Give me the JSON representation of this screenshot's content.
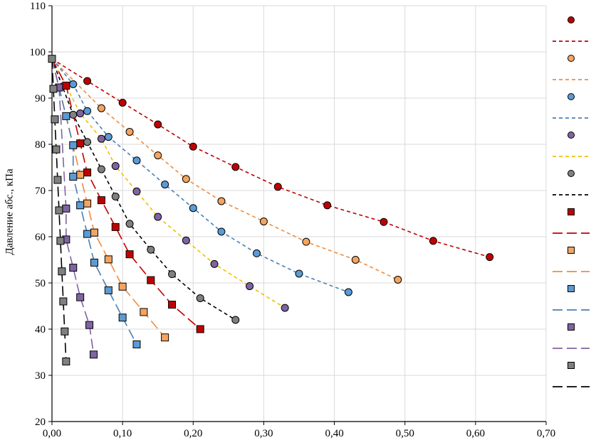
{
  "chart_data": {
    "type": "scatter",
    "title": "",
    "xlabel": "",
    "ylabel": "Давление абс., кПа",
    "xlim": [
      0,
      0.7
    ],
    "ylim": [
      20,
      110
    ],
    "x_ticks": [
      "0,00",
      "0,10",
      "0,20",
      "0,30",
      "0,40",
      "0,50",
      "0,60",
      "0,70"
    ],
    "y_ticks": [
      "20",
      "30",
      "40",
      "50",
      "60",
      "70",
      "80",
      "90",
      "100",
      "110"
    ],
    "grid": true,
    "legend_position": "right",
    "series": [
      {
        "marker": "circle",
        "color": "#c00000",
        "fit_style": "short-dash",
        "fit_color": "#c00000",
        "x": [
          0.05,
          0.1,
          0.15,
          0.2,
          0.26,
          0.32,
          0.39,
          0.47,
          0.54,
          0.62
        ],
        "y": [
          93.7,
          89.0,
          84.3,
          79.5,
          75.1,
          70.8,
          66.8,
          63.2,
          59.1,
          55.6
        ]
      },
      {
        "marker": "circle",
        "color": "#f4a460",
        "fit_style": "short-dash",
        "fit_color": "#f08c3c",
        "x": [
          0.07,
          0.11,
          0.15,
          0.19,
          0.24,
          0.3,
          0.36,
          0.43,
          0.49
        ],
        "y": [
          87.8,
          82.7,
          77.6,
          72.5,
          67.7,
          63.3,
          58.9,
          55.0,
          50.7
        ]
      },
      {
        "marker": "circle",
        "color": "#5b9bd5",
        "fit_style": "short-dash",
        "fit_color": "#4a7fb5",
        "x": [
          0.03,
          0.05,
          0.08,
          0.12,
          0.16,
          0.2,
          0.24,
          0.29,
          0.35,
          0.42
        ],
        "y": [
          93.0,
          87.2,
          81.6,
          76.5,
          71.3,
          66.2,
          61.1,
          56.4,
          52.0,
          48.0
        ]
      },
      {
        "marker": "circle",
        "color": "#8064a2",
        "fit_style": "short-dash",
        "fit_color": "#f0c000",
        "x": [
          0.04,
          0.07,
          0.09,
          0.12,
          0.15,
          0.19,
          0.23,
          0.28,
          0.33
        ],
        "y": [
          86.7,
          81.2,
          75.3,
          69.8,
          64.3,
          59.2,
          54.1,
          49.3,
          44.6
        ]
      },
      {
        "marker": "circle",
        "color": "#808080",
        "fit_style": "short-dash",
        "fit_color": "#000000",
        "x": [
          0.03,
          0.05,
          0.07,
          0.09,
          0.11,
          0.14,
          0.17,
          0.21,
          0.26
        ],
        "y": [
          86.4,
          80.5,
          74.6,
          68.7,
          62.8,
          57.2,
          51.9,
          46.7,
          42.0
        ]
      },
      {
        "marker": "square",
        "color": "#c00000",
        "fit_style": "long-dash",
        "fit_color": "#c00000",
        "x": [
          0.02,
          0.04,
          0.05,
          0.07,
          0.09,
          0.11,
          0.14,
          0.17,
          0.21
        ],
        "y": [
          92.7,
          80.2,
          73.9,
          67.9,
          62.1,
          56.2,
          50.6,
          45.3,
          40.0
        ]
      },
      {
        "marker": "square",
        "color": "#f4a460",
        "fit_style": "long-dash",
        "fit_color": "#f08c3c",
        "x": [
          0.04,
          0.05,
          0.06,
          0.08,
          0.1,
          0.13,
          0.16
        ],
        "y": [
          73.4,
          67.2,
          60.9,
          55.1,
          49.2,
          43.7,
          38.2
        ]
      },
      {
        "marker": "square",
        "color": "#5b9bd5",
        "fit_style": "long-dash",
        "fit_color": "#4a7fb5",
        "x": [
          0.02,
          0.03,
          0.03,
          0.04,
          0.05,
          0.06,
          0.08,
          0.1,
          0.12
        ],
        "y": [
          86.1,
          79.8,
          73.0,
          66.8,
          60.6,
          54.4,
          48.4,
          42.5,
          36.7
        ]
      },
      {
        "marker": "square",
        "color": "#8064a2",
        "fit_style": "long-dash",
        "fit_color": "#8064a2",
        "x": [
          0.01,
          0.02,
          0.02,
          0.03,
          0.04,
          0.053,
          0.059
        ],
        "y": [
          92.3,
          66.1,
          59.4,
          53.3,
          46.9,
          40.9,
          34.5
        ]
      },
      {
        "marker": "square",
        "color": "#808080",
        "fit_style": "long-dash",
        "fit_color": "#000000",
        "x": [
          0.0,
          0.002,
          0.004,
          0.006,
          0.008,
          0.01,
          0.012,
          0.014,
          0.016,
          0.018,
          0.02
        ],
        "y": [
          98.5,
          92.0,
          85.4,
          78.9,
          72.3,
          65.7,
          59.1,
          52.5,
          46.0,
          39.5,
          33.0
        ]
      }
    ]
  }
}
